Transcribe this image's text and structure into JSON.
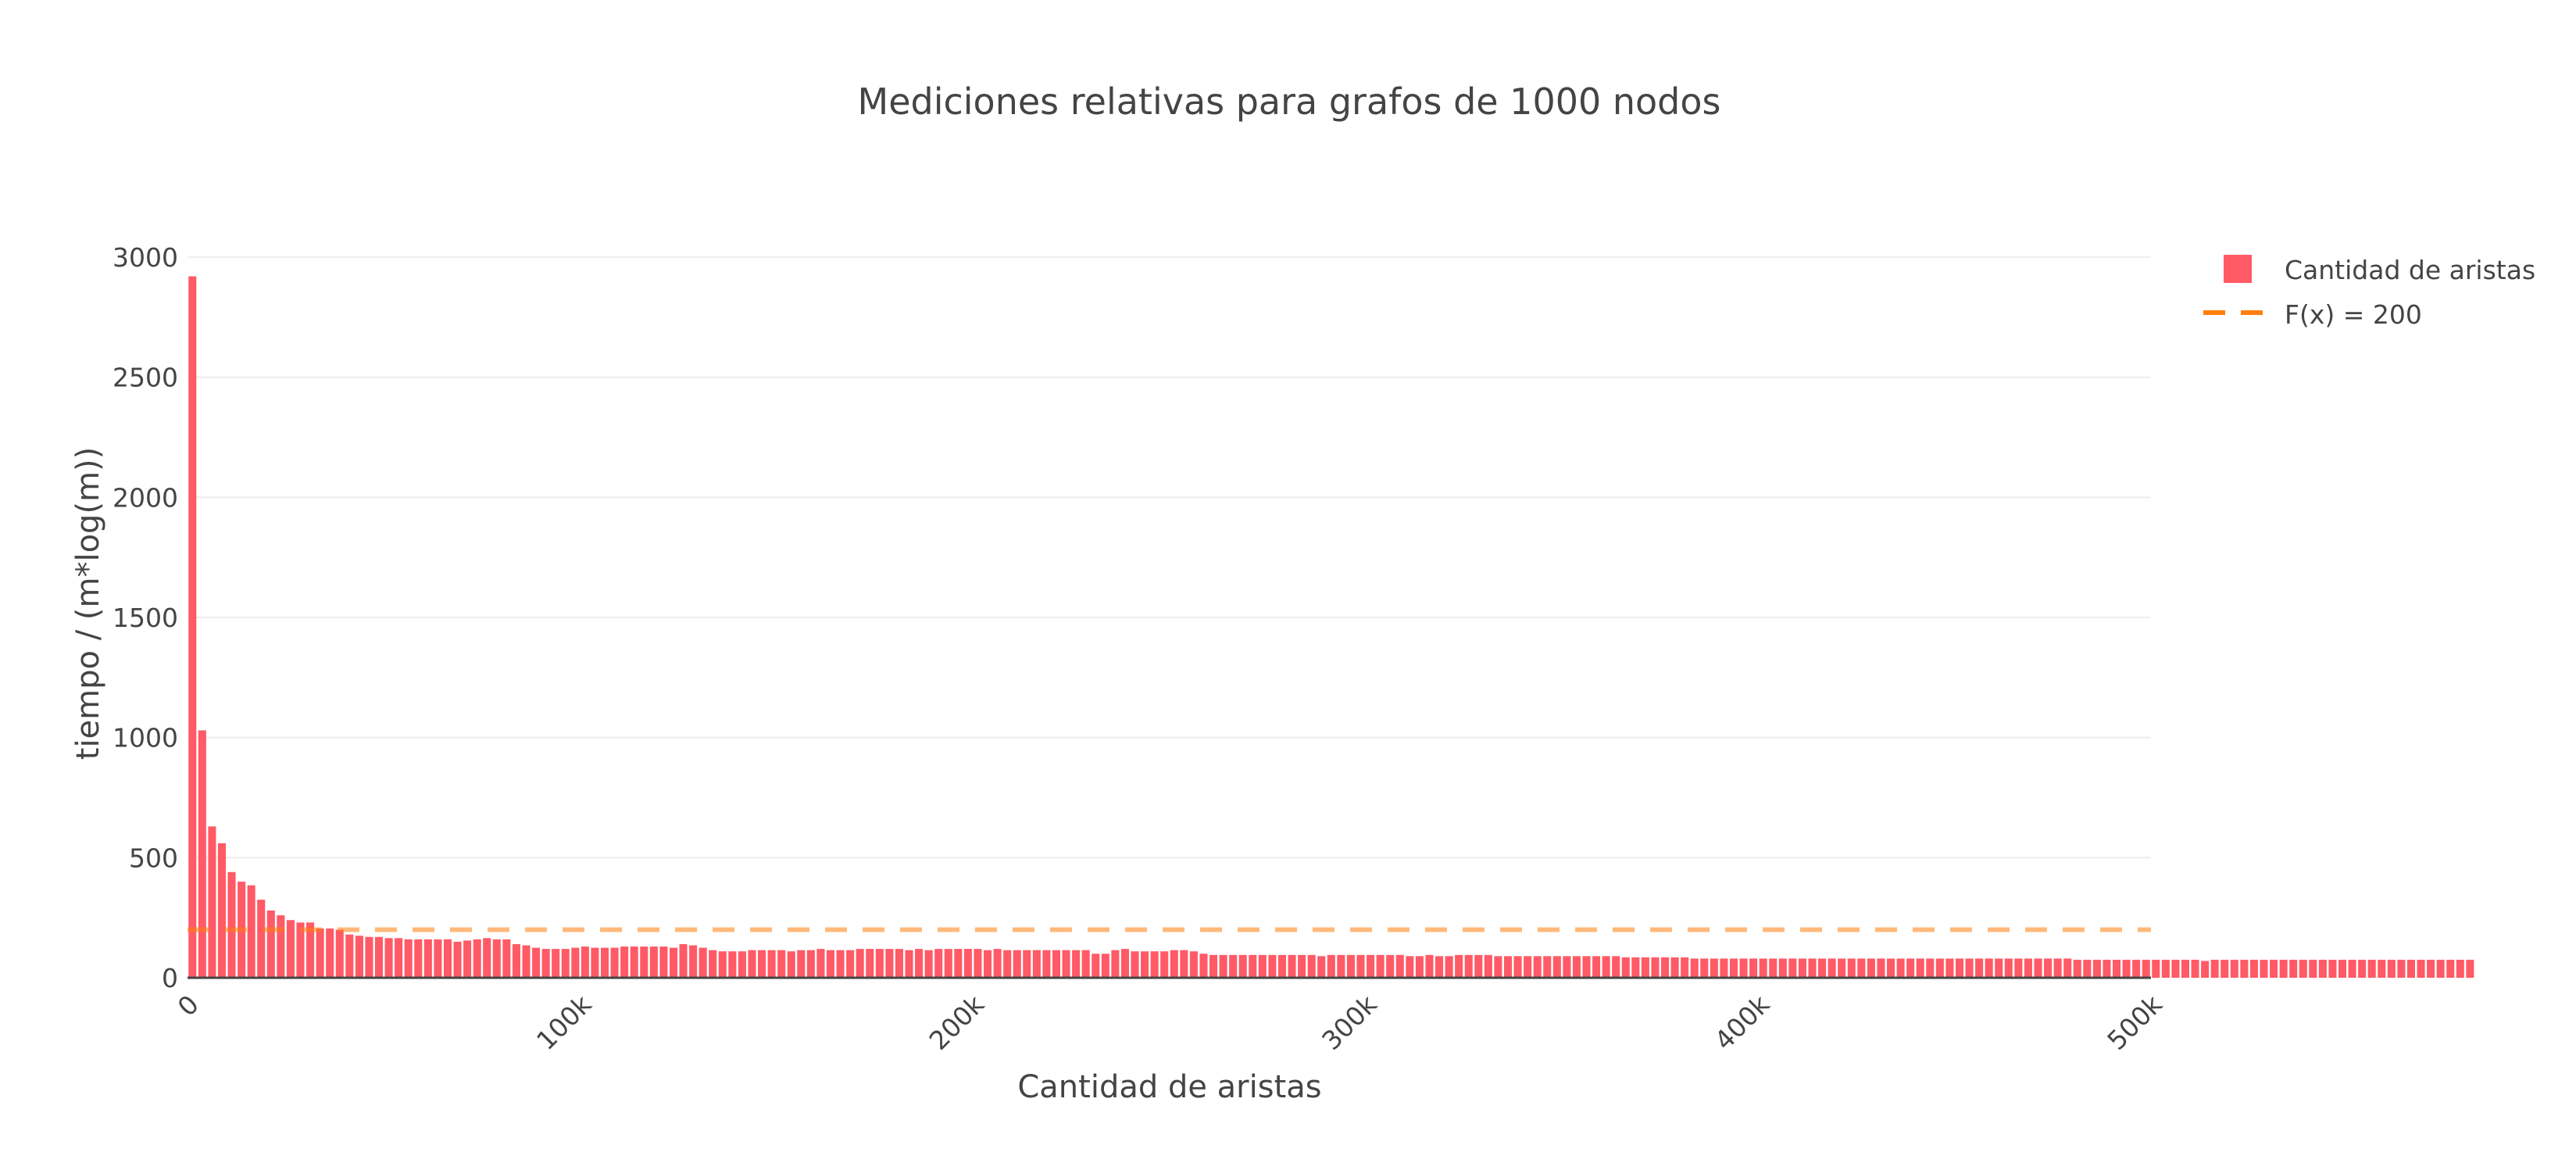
{
  "chart_data": {
    "type": "bar",
    "title": "Mediciones relativas para grafos de 1000 nodos",
    "xlabel": "Cantidad de aristas",
    "ylabel": "tiempo / (m*log(m))",
    "xlim": [
      0,
      500000
    ],
    "ylim": [
      0,
      3000
    ],
    "xticks": [
      0,
      100000,
      200000,
      300000,
      400000,
      500000
    ],
    "xtick_labels": [
      "0",
      "100k",
      "200k",
      "300k",
      "400k",
      "500k"
    ],
    "yticks": [
      0,
      500,
      1000,
      1500,
      2000,
      2500,
      3000
    ],
    "ytick_labels": [
      "0",
      "500",
      "1000",
      "1500",
      "2000",
      "2500",
      "3000"
    ],
    "grid": true,
    "legend_position": "top-right",
    "series": [
      {
        "name": "Cantidad de aristas",
        "type": "bar",
        "color": "#ff5a66",
        "bar_spacing": 2500,
        "x_start": 0,
        "values": [
          2920,
          1030,
          630,
          560,
          440,
          400,
          385,
          325,
          280,
          260,
          240,
          230,
          230,
          205,
          205,
          200,
          180,
          175,
          170,
          170,
          165,
          165,
          160,
          160,
          160,
          160,
          160,
          150,
          155,
          160,
          165,
          160,
          160,
          140,
          135,
          125,
          120,
          120,
          120,
          125,
          130,
          125,
          125,
          125,
          130,
          130,
          130,
          130,
          130,
          125,
          140,
          135,
          125,
          115,
          110,
          110,
          110,
          115,
          115,
          115,
          115,
          110,
          115,
          115,
          120,
          115,
          115,
          115,
          120,
          120,
          120,
          120,
          120,
          115,
          120,
          115,
          120,
          120,
          120,
          120,
          120,
          115,
          120,
          115,
          115,
          115,
          115,
          115,
          115,
          115,
          115,
          115,
          100,
          100,
          115,
          120,
          110,
          110,
          110,
          110,
          115,
          115,
          110,
          100,
          95,
          95,
          95,
          95,
          95,
          95,
          95,
          95,
          95,
          95,
          95,
          90,
          95,
          95,
          95,
          95,
          95,
          95,
          95,
          95,
          90,
          90,
          95,
          90,
          90,
          95,
          95,
          95,
          95,
          90,
          90,
          90,
          90,
          90,
          90,
          90,
          90,
          90,
          90,
          90,
          90,
          90,
          85,
          85,
          85,
          85,
          85,
          85,
          85,
          80,
          80,
          80,
          80,
          80,
          80,
          80,
          80,
          80,
          80,
          80,
          80,
          80,
          80,
          80,
          80,
          80,
          80,
          80,
          80,
          80,
          80,
          80,
          80,
          80,
          80,
          80,
          80,
          80,
          80,
          80,
          80,
          80,
          80,
          80,
          80,
          80,
          80,
          80,
          75,
          75,
          75,
          75,
          75,
          75,
          75,
          75,
          75,
          75,
          75,
          75,
          75,
          70,
          75,
          75,
          75,
          75,
          75,
          75,
          75,
          75,
          75,
          75,
          75,
          75,
          75,
          75,
          75,
          75,
          75,
          75,
          75,
          75,
          75,
          75,
          75,
          75,
          75,
          75,
          75
        ]
      },
      {
        "name": "F(x) = 200",
        "type": "line",
        "dash": "dashed",
        "color": "#ff7f0e",
        "y": 200,
        "x": [
          0,
          500000
        ]
      }
    ]
  }
}
